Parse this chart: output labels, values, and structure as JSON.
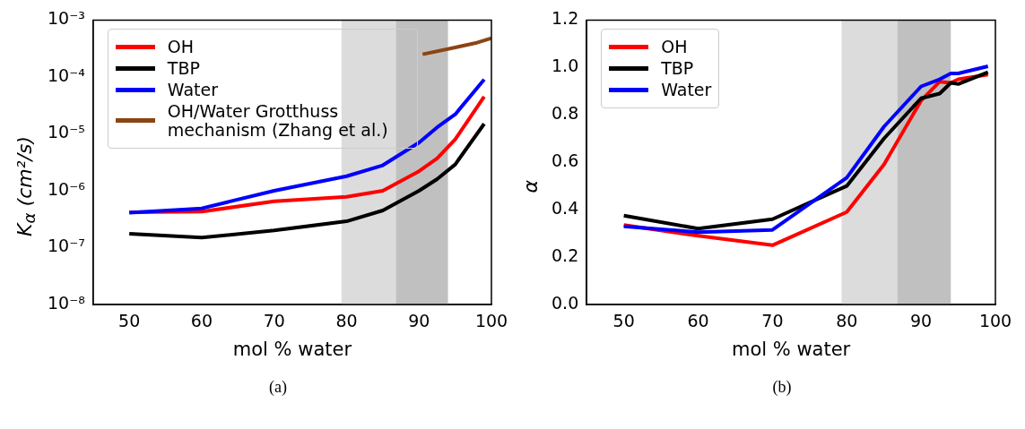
{
  "chart_data": [
    {
      "type": "line",
      "xlabel": "mol % water",
      "ylabel": "K$_{α}$ (cm²/s)",
      "log": true,
      "legend": "top left",
      "annotations": [
        "(a)"
      ],
      "xlim": [
        45,
        100
      ],
      "xticks": [
        50,
        60,
        70,
        80,
        90,
        100
      ],
      "ylim": [
        1e-08,
        0.001
      ],
      "yticks": [
        {
          "value": 1e-08,
          "label": "10⁻⁸"
        },
        {
          "value": 1e-07,
          "label": "10⁻⁷"
        },
        {
          "value": 1e-06,
          "label": "10⁻⁶"
        },
        {
          "value": 1e-05,
          "label": "10⁻⁵"
        },
        {
          "value": 0.0001,
          "label": "10⁻⁴"
        },
        {
          "value": 0.001,
          "label": "10⁻³"
        }
      ],
      "bands": [
        {
          "axis": "x",
          "from": 79.3,
          "to": 86.8,
          "color": "#dcdcdc"
        },
        {
          "axis": "x",
          "from": 86.8,
          "to": 94,
          "color": "#c0c0c0"
        }
      ],
      "series": [
        {
          "name": "OH",
          "color": "#ff0000",
          "x": [
            50,
            60,
            70,
            80,
            85,
            90,
            92.5,
            95,
            99
          ],
          "values": [
            4.2e-07,
            4.3e-07,
            6.5e-07,
            7.8e-07,
            1e-06,
            2.2e-06,
            3.7e-06,
            8e-06,
            4.5e-05
          ]
        },
        {
          "name": "TBP",
          "color": "#000000",
          "x": [
            50,
            60,
            70,
            80,
            85,
            90,
            92.5,
            95,
            99
          ],
          "values": [
            1.75e-07,
            1.5e-07,
            2e-07,
            2.9e-07,
            4.5e-07,
            1e-06,
            1.6e-06,
            2.9e-06,
            1.5e-05
          ]
        },
        {
          "name": "Water",
          "color": "#0000ff",
          "x": [
            50,
            60,
            70,
            80,
            85,
            90,
            92.5,
            95,
            99
          ],
          "values": [
            4.1e-07,
            4.9e-07,
            1e-06,
            1.8e-06,
            2.8e-06,
            7e-06,
            1.3e-05,
            2.2e-05,
            9e-05
          ]
        },
        {
          "name": "OH/Water Grotthuss mechanism (Zhang et al.)",
          "color": "#8b4513",
          "x": [
            90.5,
            95,
            98,
            100
          ],
          "values": [
            0.00025,
            0.00033,
            0.0004,
            0.00048
          ]
        }
      ]
    },
    {
      "type": "line",
      "xlabel": "mol % water",
      "ylabel": "α",
      "legend": "top left",
      "annotations": [
        "(b)"
      ],
      "xlim": [
        45,
        100
      ],
      "xticks": [
        50,
        60,
        70,
        80,
        90,
        100
      ],
      "ylim": [
        0,
        1.2
      ],
      "yticks": [
        {
          "value": 0,
          "label": "0.0"
        },
        0.2,
        0.4,
        0.6,
        0.8,
        {
          "value": 1,
          "label": "1.0"
        },
        1.2
      ],
      "bands": [
        {
          "axis": "x",
          "from": 79.3,
          "to": 86.8,
          "color": "#dcdcdc"
        },
        {
          "axis": "x",
          "from": 86.8,
          "to": 94,
          "color": "#c0c0c0"
        }
      ],
      "series": [
        {
          "name": "OH",
          "color": "#ff0000",
          "x": [
            50,
            60,
            70,
            80,
            85,
            90,
            92.5,
            94,
            95,
            99
          ],
          "values": [
            0.335,
            0.29,
            0.25,
            0.39,
            0.59,
            0.86,
            0.94,
            0.935,
            0.95,
            0.97
          ]
        },
        {
          "name": "TBP",
          "color": "#000000",
          "x": [
            50,
            60,
            70,
            80,
            85,
            90,
            92.5,
            94,
            95,
            99
          ],
          "values": [
            0.375,
            0.32,
            0.36,
            0.5,
            0.7,
            0.87,
            0.89,
            0.935,
            0.93,
            0.98
          ]
        },
        {
          "name": "Water",
          "color": "#0000ff",
          "x": [
            50,
            60,
            70,
            80,
            85,
            90,
            92.5,
            94,
            95,
            99
          ],
          "values": [
            0.33,
            0.305,
            0.315,
            0.535,
            0.75,
            0.92,
            0.95,
            0.975,
            0.975,
            1.005
          ]
        }
      ]
    }
  ]
}
